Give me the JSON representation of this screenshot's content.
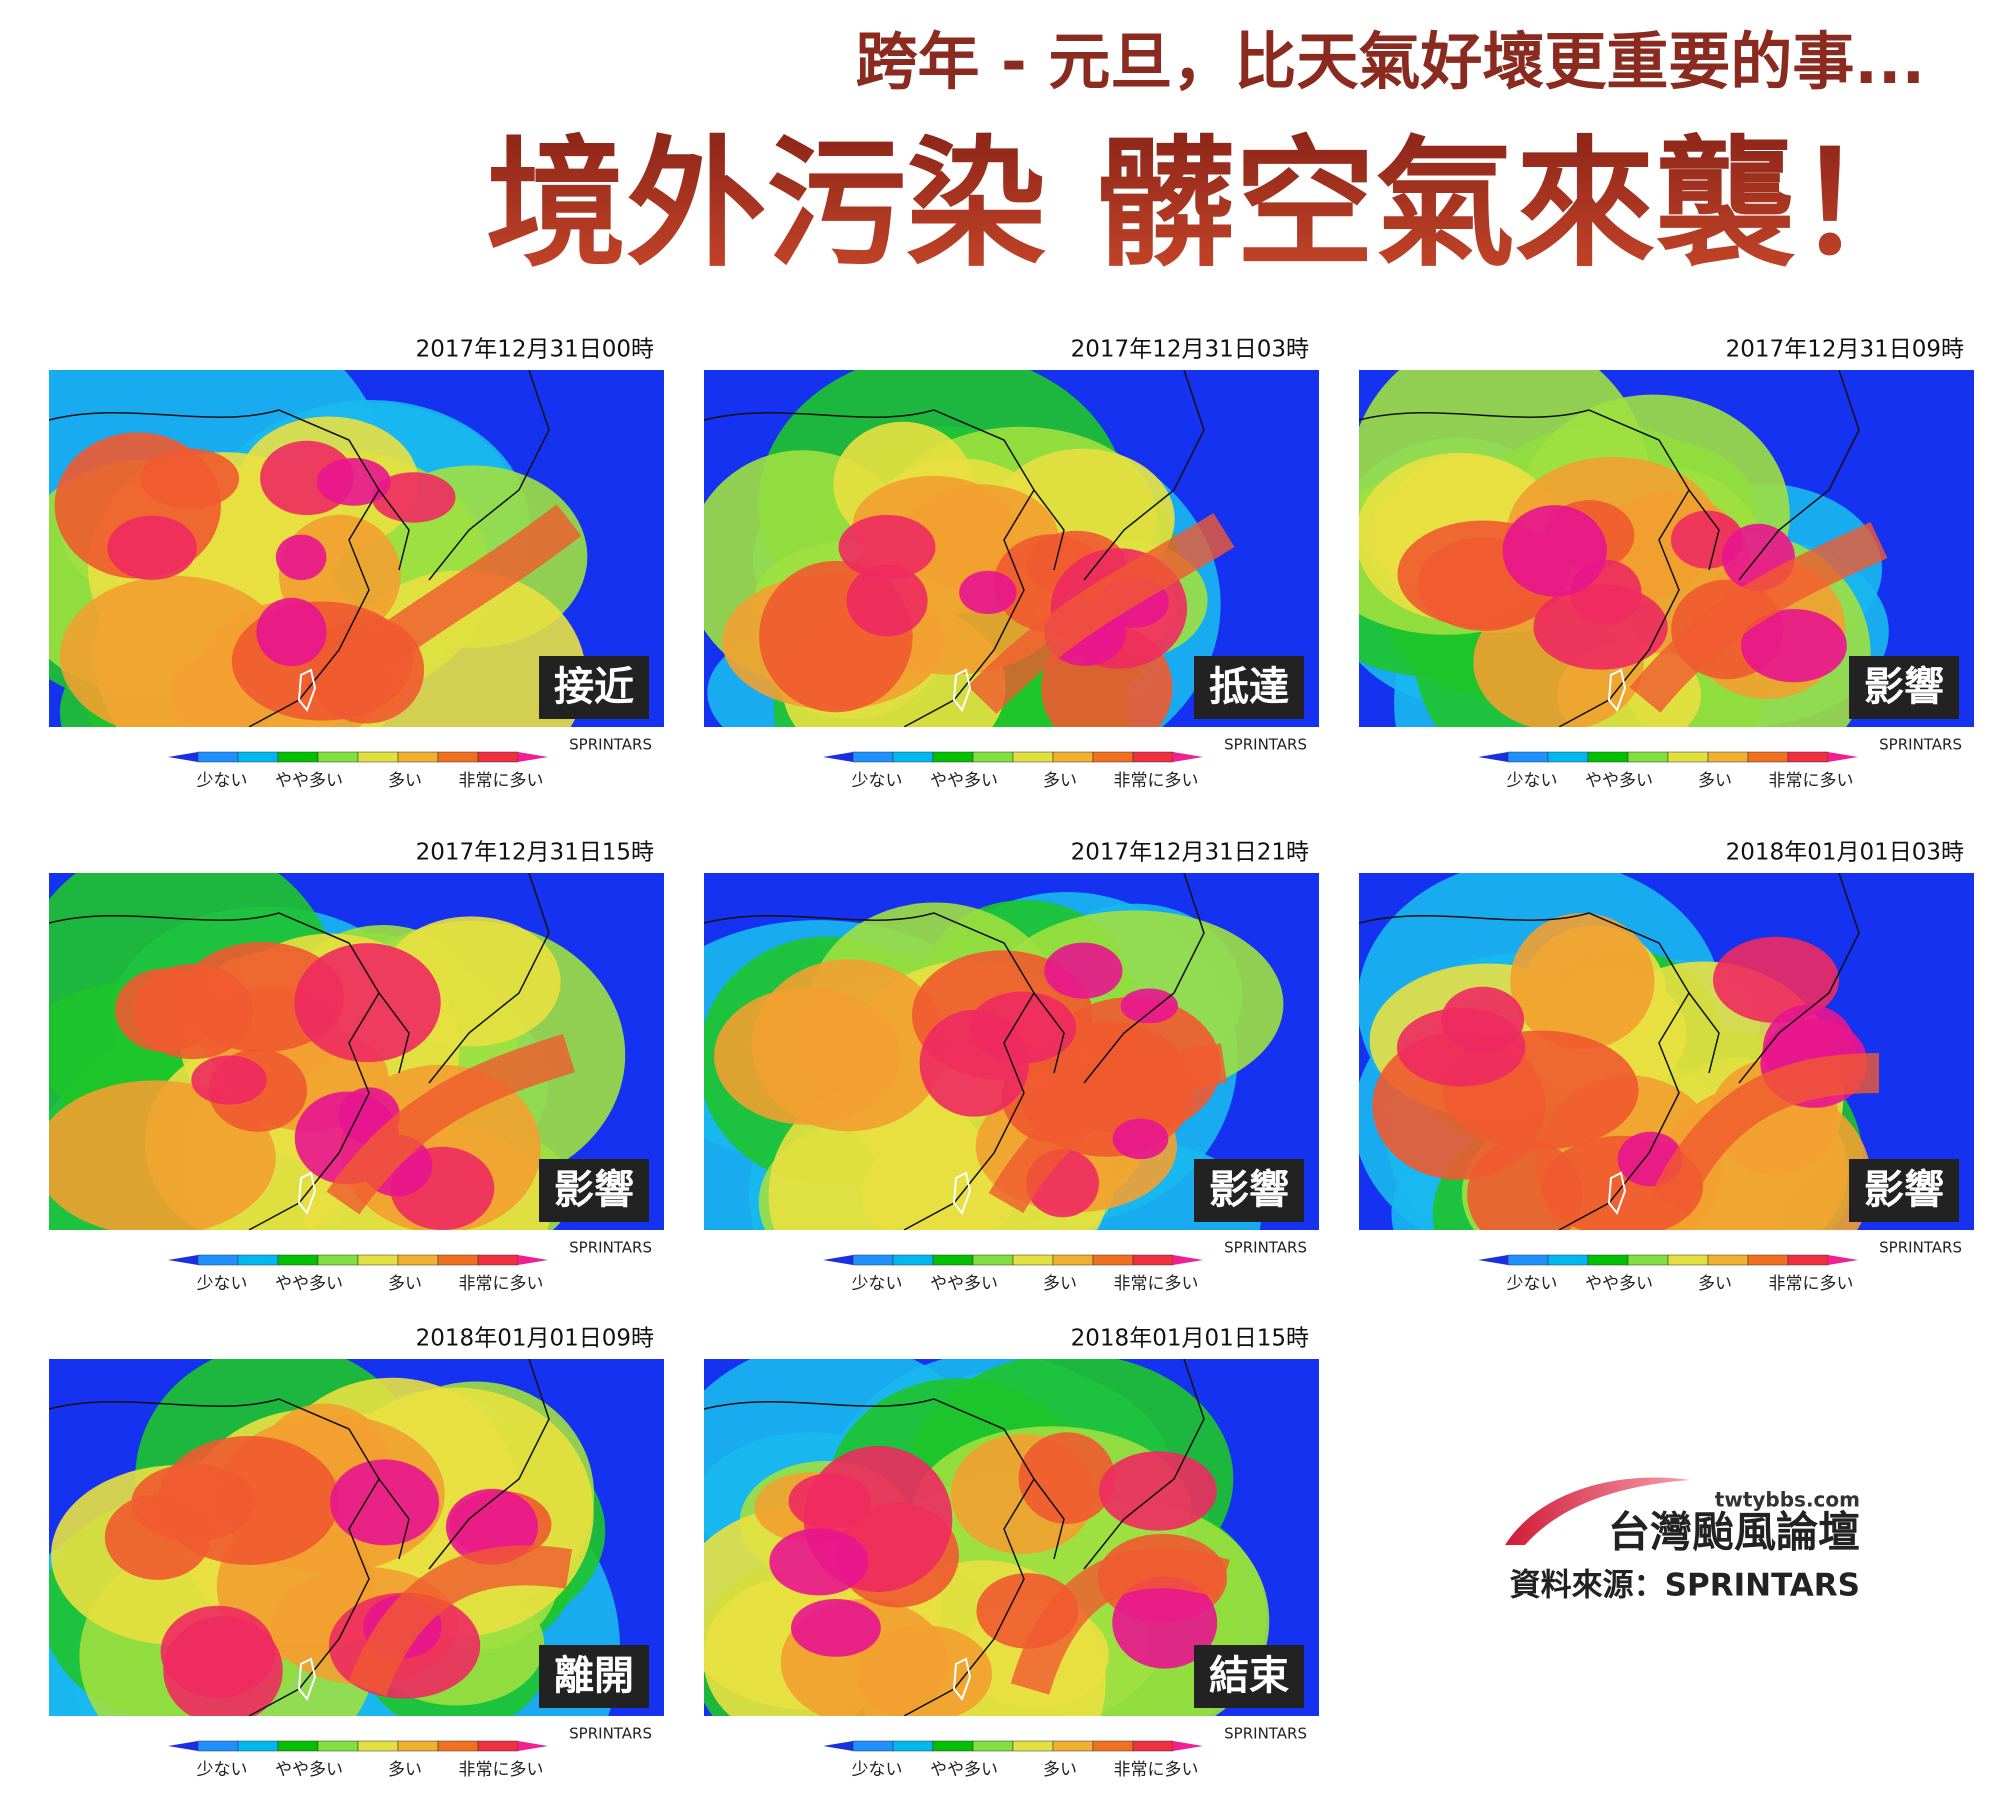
{
  "header": {
    "subtitle": "跨年 - 元旦，比天氣好壞更重要的事...",
    "title": "境外污染 髒空氣來襲！"
  },
  "panels": [
    {
      "time": "2017年12月31日00時",
      "status": "接近"
    },
    {
      "time": "2017年12月31日03時",
      "status": "抵達"
    },
    {
      "time": "2017年12月31日09時",
      "status": "影響"
    },
    {
      "time": "2017年12月31日15時",
      "status": "影響"
    },
    {
      "time": "2017年12月31日21時",
      "status": "影響"
    },
    {
      "time": "2018年01月01日03時",
      "status": "影響"
    },
    {
      "time": "2018年01月01日09時",
      "status": "離開"
    },
    {
      "time": "2018年01月01日15時",
      "status": "結束"
    }
  ],
  "legend": {
    "source_tag": "SPRINTARS",
    "labels": [
      "少ない",
      "やや多い",
      "多い",
      "非常に多い"
    ]
  },
  "footer": {
    "site": "twtybbs.com",
    "brand": "台灣颱風論壇",
    "source": "資料來源：SPRINTARS"
  }
}
